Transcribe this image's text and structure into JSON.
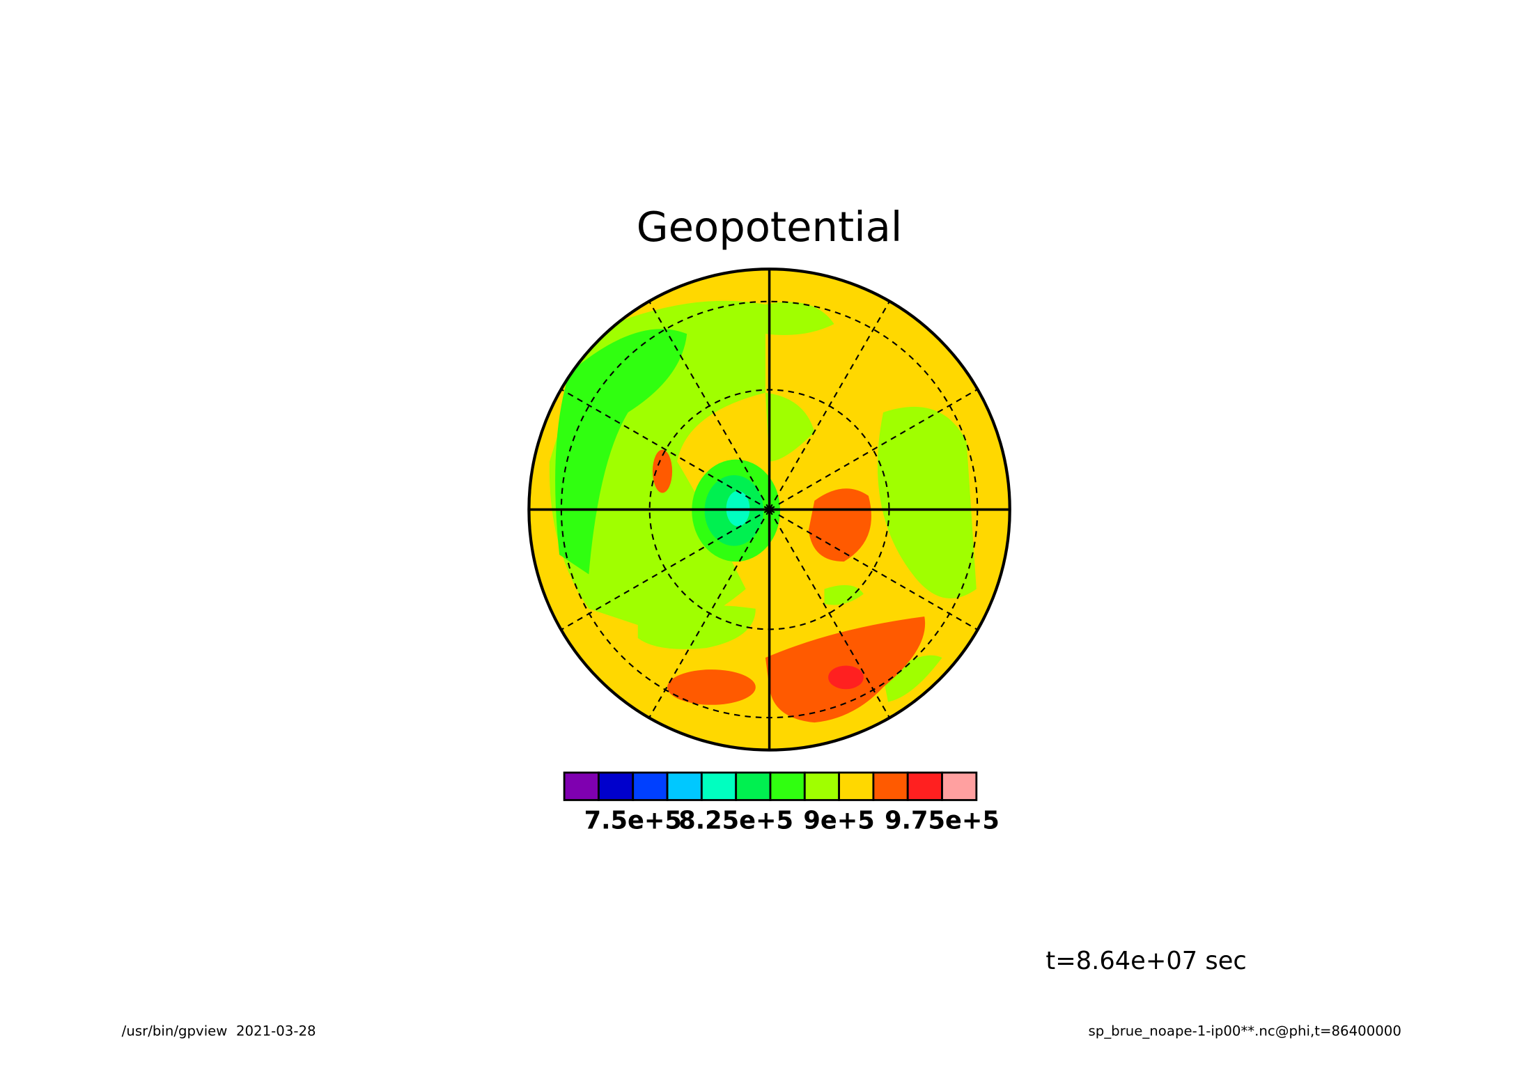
{
  "chart_data": {
    "type": "polar-contour",
    "title": "Geopotential",
    "colorbar": {
      "levels": [
        700000,
        725000,
        750000,
        775000,
        800000,
        825000,
        850000,
        875000,
        900000,
        925000,
        950000,
        975000,
        1000000
      ],
      "colors": [
        "#7f00b0",
        "#0000cc",
        "#0040ff",
        "#00c8ff",
        "#00ffc0",
        "#00f050",
        "#30ff10",
        "#a0ff00",
        "#ffd800",
        "#ff5a00",
        "#ff2020",
        "#ffa0a0"
      ],
      "xlim": [
        700000,
        1000000
      ],
      "xticks": [
        {
          "value": 750000,
          "label": "7.5e+5"
        },
        {
          "value": 825000,
          "label": "8.25e+5"
        },
        {
          "value": 900000,
          "label": "9e+5"
        },
        {
          "value": 975000,
          "label": "9.75e+5"
        }
      ]
    },
    "time_label": "t=8.64e+07 sec",
    "footer_left": "/usr/bin/gpview  2021-03-28",
    "footer_right": "sp_brue_noape-1-ip00**.nc@phi,t=86400000"
  }
}
